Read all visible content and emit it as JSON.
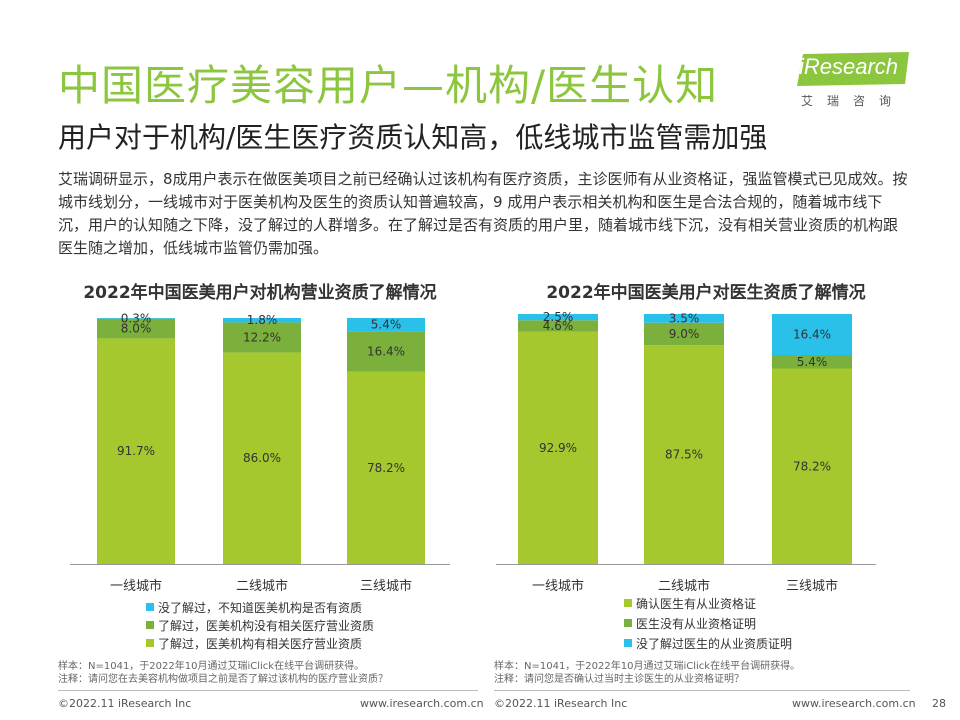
{
  "title": "中国医疗美容用户—机构/医生认知",
  "subtitle": "用户对于机构/医生医疗资质认知高，低线城市监管需加强",
  "logo": {
    "brand": "iResearch",
    "sub": "艾瑞咨询"
  },
  "intro": "艾瑞调研显示，8成用户表示在做医美项目之前已经确认过该机构有医疗资质，主诊医师有从业资格证，强监管模式已见成效。按城市线划分，一线城市对于医美机构及医生的资质认知普遍较高，9 成用户表示相关机构和医生是合法合规的，随着城市线下沉，用户的认知随之下降，没了解过的人群增多。在了解过是否有资质的用户里，随着城市线下沉，没有相关营业资质的机构跟医生随之增加，低线城市监管仍需加强。",
  "colors": {
    "title_green": "#8cc63f",
    "bar_green": "#a6c82f",
    "mid_green": "#7ab03b",
    "cyan": "#29c1ea",
    "logo_green": "#8cc63f"
  },
  "chart_data": [
    {
      "type": "bar",
      "stacked": true,
      "title": "2022年中国医美用户对机构营业资质了解情况",
      "categories": [
        "一线城市",
        "二线城市",
        "三线城市"
      ],
      "series": [
        {
          "name": "了解过，医美机构有相关医疗营业资质",
          "values": [
            91.7,
            86.0,
            78.2
          ],
          "labels": [
            "91.7%",
            "86.0%",
            "78.2%"
          ],
          "color": "#a6c82f"
        },
        {
          "name": "了解过，医美机构没有相关医疗营业资质",
          "values": [
            8.0,
            12.2,
            16.4
          ],
          "labels": [
            "8.0%",
            "12.2%",
            "16.4%"
          ],
          "color": "#7ab03b"
        },
        {
          "name": "没了解过，不知道医美机构是否有资质",
          "values": [
            0.3,
            1.8,
            5.4
          ],
          "labels": [
            "0.3%",
            "1.8%",
            "5.4%"
          ],
          "color": "#29c1ea"
        }
      ],
      "legend_order": [
        2,
        1,
        0
      ],
      "ylim": [
        0,
        100
      ],
      "grid": false,
      "legend_position": "bottom"
    },
    {
      "type": "bar",
      "stacked": true,
      "title": "2022年中国医美用户对医生资质了解情况",
      "categories": [
        "一线城市",
        "二线城市",
        "三线城市"
      ],
      "series": [
        {
          "name": "确认医生有从业资格证",
          "values": [
            92.9,
            87.5,
            78.2
          ],
          "labels": [
            "92.9%",
            "87.5%",
            "78.2%"
          ],
          "color": "#a6c82f"
        },
        {
          "name": "医生没有从业资格证明",
          "values": [
            4.6,
            9.0,
            5.4
          ],
          "labels": [
            "4.6%",
            "9.0%",
            "5.4%"
          ],
          "color": "#7ab03b"
        },
        {
          "name": "没了解过医生的从业资质证明",
          "values": [
            2.5,
            3.5,
            16.4
          ],
          "labels": [
            "2.5%",
            "3.5%",
            "16.4%"
          ],
          "color": "#29c1ea"
        }
      ],
      "legend_order": [
        0,
        1,
        2
      ],
      "ylim": [
        0,
        100
      ],
      "grid": false,
      "legend_position": "bottom"
    }
  ],
  "notes": {
    "left": [
      "样本：N=1041，于2022年10月通过艾瑞iClick在线平台调研获得。",
      "注释：请问您在去美容机构做项目之前是否了解过该机构的医疗营业资质？"
    ],
    "right": [
      "样本：N=1041，于2022年10月通过艾瑞iClick在线平台调研获得。",
      "注释：请问您是否确认过当时主诊医生的从业资格证明？"
    ]
  },
  "footer": {
    "copyright": "©2022.11 iResearch Inc",
    "url": "www.iresearch.com.cn",
    "page": "28"
  }
}
